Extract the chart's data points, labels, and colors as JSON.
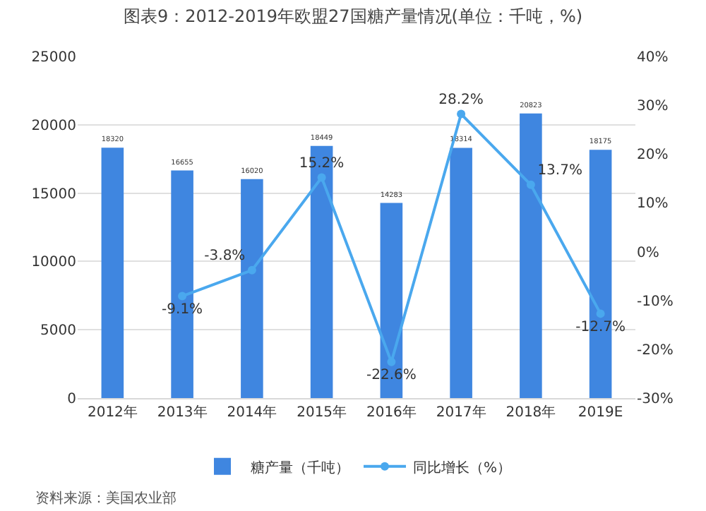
{
  "chart_data": {
    "type": "bar",
    "title": "图表9：2012-2019年欧盟27国糖产量情况(单位：千吨，%)",
    "categories": [
      "2012年",
      "2013年",
      "2014年",
      "2015年",
      "2016年",
      "2017年",
      "2018年",
      "2019E"
    ],
    "series": [
      {
        "name": "糖产量（千吨）",
        "color": "#3f86e0",
        "values": [
          18320,
          16655,
          16020,
          18449,
          14283,
          18314,
          20823,
          18175
        ],
        "value_labels": [
          "18320",
          "16655",
          "16020",
          "18449",
          "14283",
          "18314",
          "20823",
          "18175"
        ]
      },
      {
        "name": "同比增长（%）",
        "type": "line",
        "axis": "y2",
        "color": "#4aa8ee",
        "marker": "circle",
        "values": [
          null,
          -9.1,
          -3.8,
          15.2,
          -22.6,
          28.2,
          13.7,
          -12.7
        ],
        "value_labels": [
          null,
          "-9.1%",
          "-3.8%",
          "15.2%",
          "-22.6%",
          "28.2%",
          "13.7%",
          "-12.7%"
        ]
      }
    ],
    "ylim": [
      0,
      25000
    ],
    "yticks": [
      0,
      5000,
      10000,
      15000,
      20000,
      25000
    ],
    "y2lim": [
      -30,
      40
    ],
    "y2ticks": [
      {
        "value": -30,
        "label": "-30%"
      },
      {
        "value": -20,
        "label": "-20%"
      },
      {
        "value": -10,
        "label": "-10%"
      },
      {
        "value": 0,
        "label": "0%"
      },
      {
        "value": 10,
        "label": "10%"
      },
      {
        "value": 20,
        "label": "20%"
      },
      {
        "value": 30,
        "label": "30%"
      },
      {
        "value": 40,
        "label": "40%"
      }
    ],
    "grid": "y",
    "legend": "bottom",
    "annotations": [
      "资料来源：美国农业部"
    ]
  }
}
